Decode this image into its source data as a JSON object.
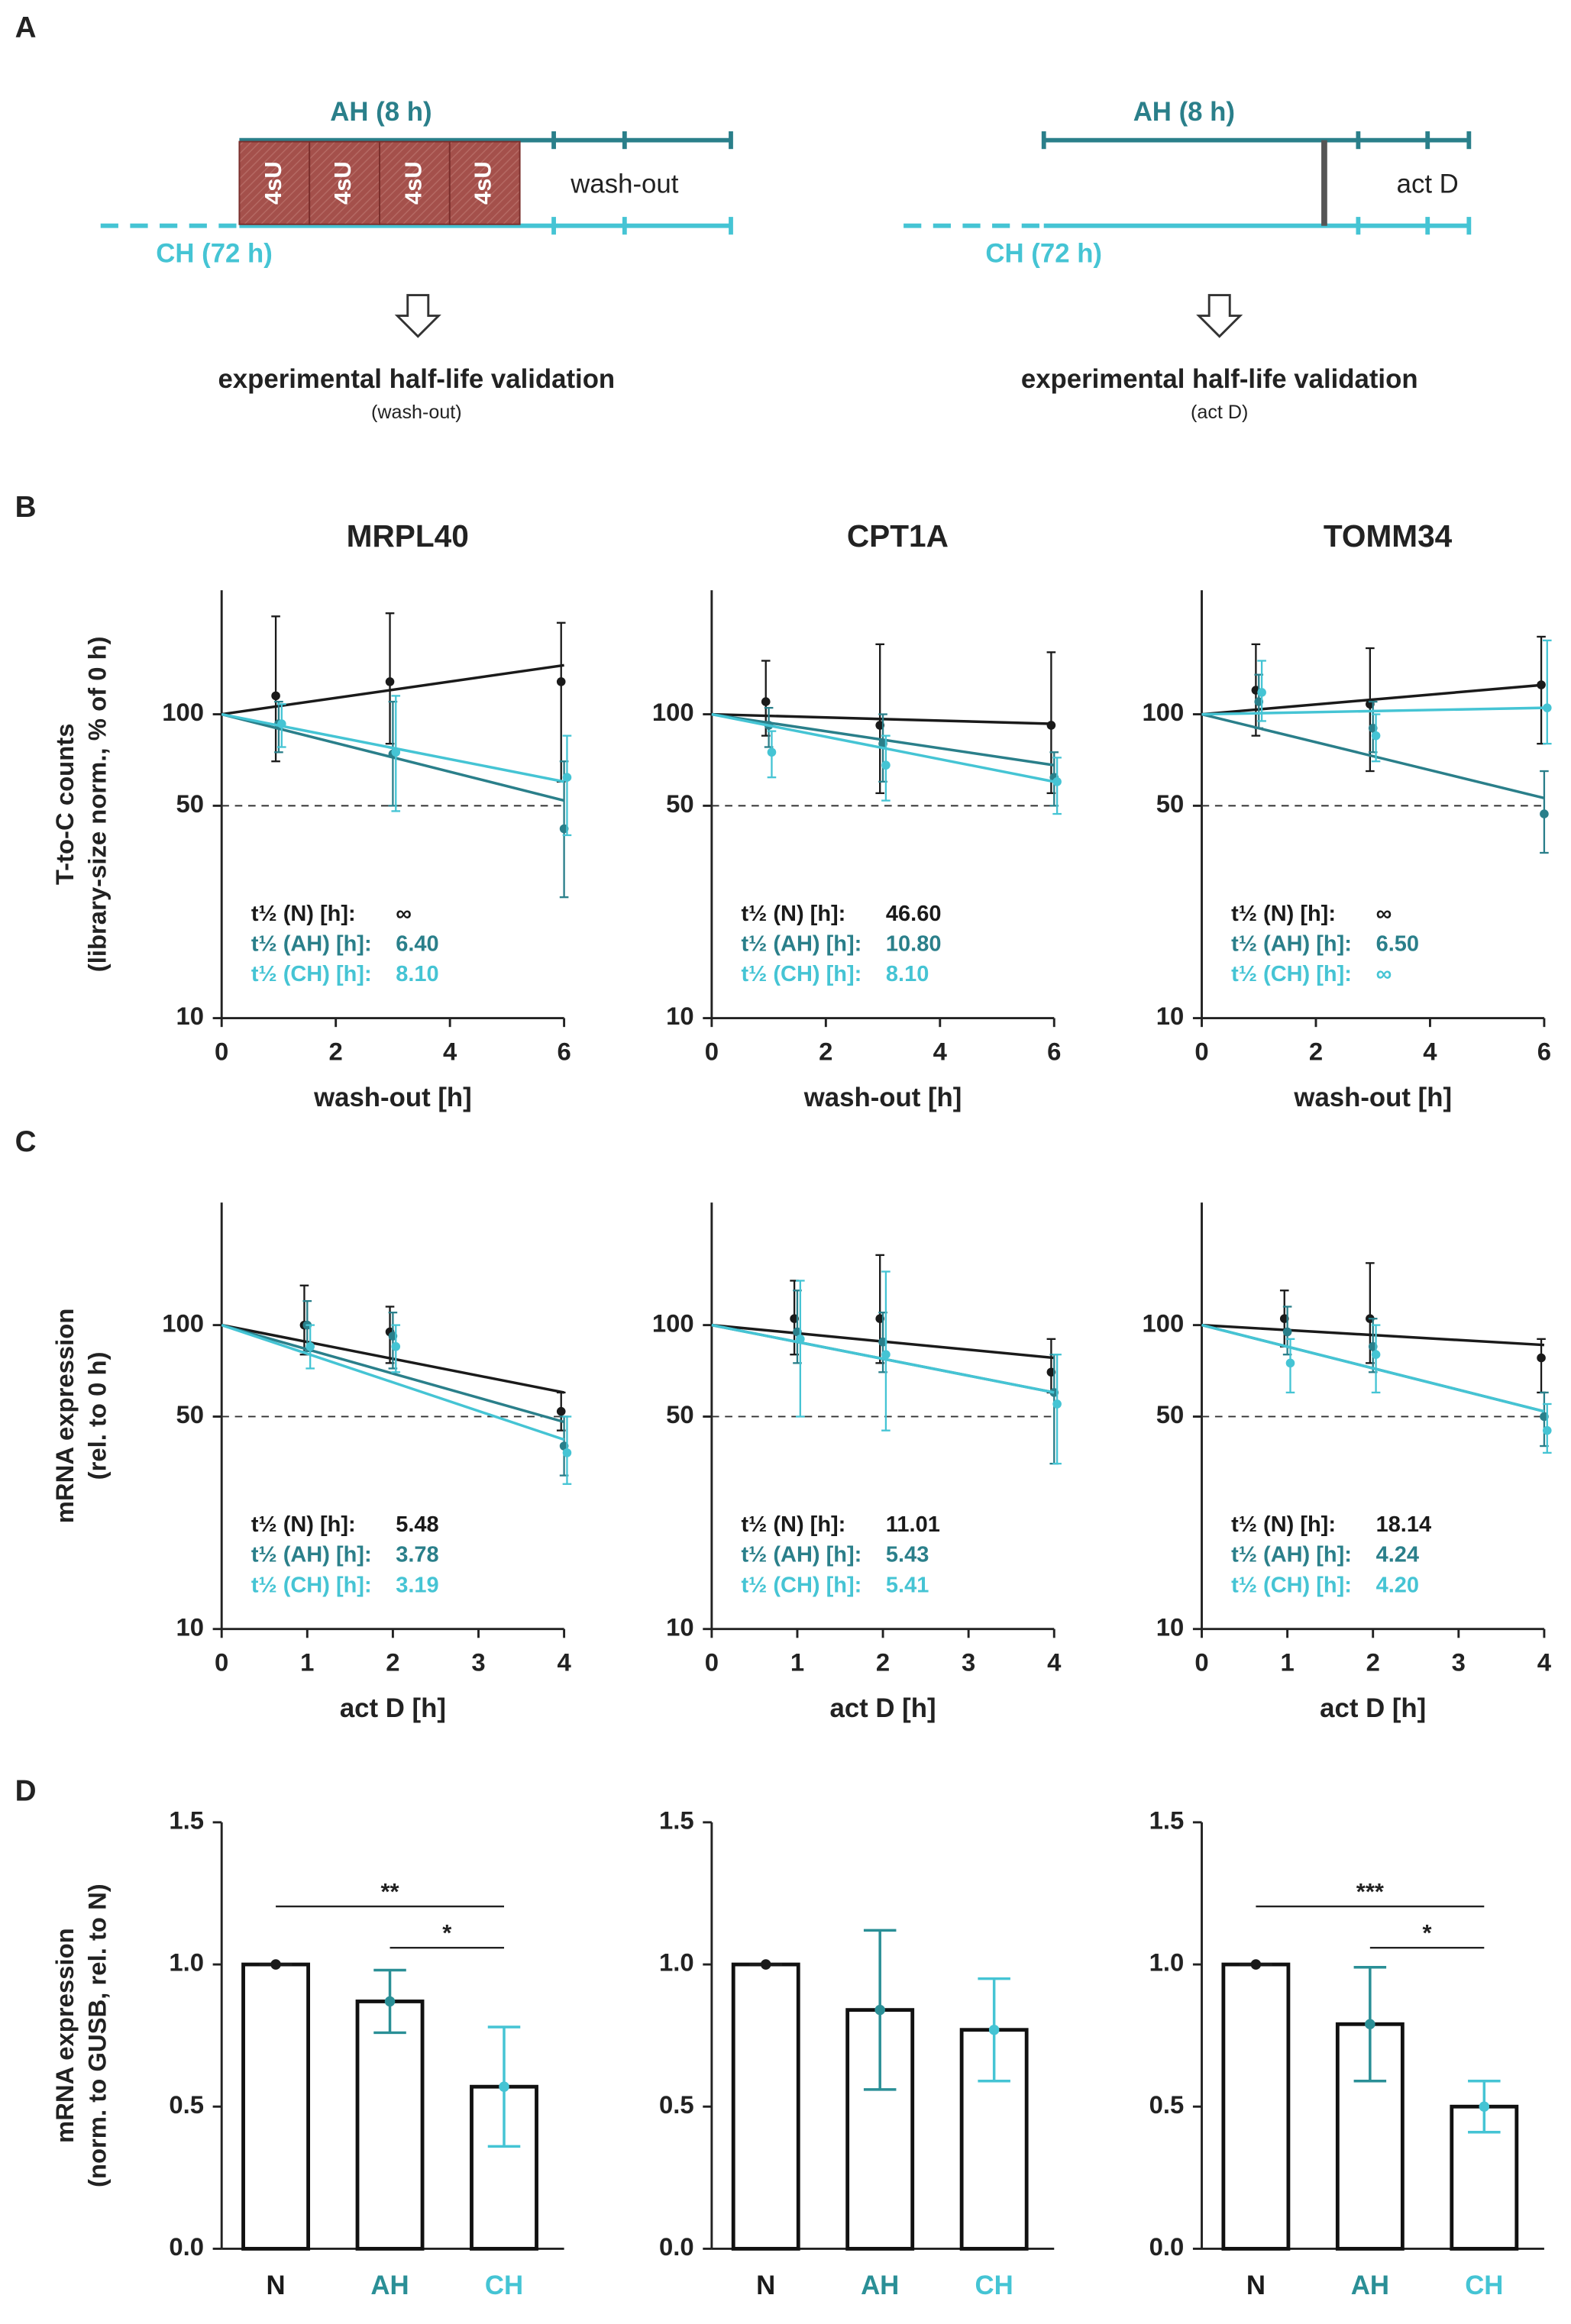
{
  "panel_labels": [
    "A",
    "B",
    "C",
    "D"
  ],
  "diagram": {
    "left": {
      "ah_label": "AH (8 h)",
      "ch_label": "CH (72 h)",
      "pulses": [
        "4sU",
        "4sU",
        "4sU",
        "4sU"
      ],
      "phase": "wash-out",
      "caption": "experimental half-life validation",
      "subcaption": "(wash-out)"
    },
    "right": {
      "ah_label": "AH (8 h)",
      "ch_label": "CH (72 h)",
      "phase": "act D",
      "caption": "experimental half-life validation",
      "subcaption": "(act D)"
    }
  },
  "chart_data": [
    {
      "type": "line",
      "log_y": true,
      "title": "MRPL40",
      "ylabel": [
        "T-to-C counts",
        "(library-size norm., % of 0 h)"
      ],
      "xlabel": "wash-out [h]",
      "xlim": [
        0,
        6
      ],
      "xticks": [
        0,
        2,
        4,
        6
      ],
      "ylim": [
        10,
        256
      ],
      "yticks": [
        10,
        50,
        100
      ],
      "reference_line": 50,
      "x": [
        1,
        3,
        6
      ],
      "series": [
        {
          "color": "#1a1a1a",
          "values": [
            115,
            128,
            128
          ],
          "err_lo": [
            70,
            80,
            60
          ],
          "err_hi": [
            210,
            215,
            200
          ],
          "fit": {
            "x": [
              0,
              6
            ],
            "values": [
              100,
              145
            ]
          },
          "half_life_label": "t½ (N) [h]:",
          "half_life": "∞"
        },
        {
          "color": "#2a7f8a",
          "values": [
            93,
            74,
            42
          ],
          "err_lo": [
            75,
            50,
            25
          ],
          "err_hi": [
            110,
            110,
            70
          ],
          "fit": {
            "x": [
              0,
              6
            ],
            "values": [
              100,
              52
            ]
          },
          "half_life_label": "t½ (AH) [h]:",
          "half_life": "6.40"
        },
        {
          "color": "#45c4d4",
          "values": [
            93,
            75,
            62
          ],
          "err_lo": [
            78,
            48,
            40
          ],
          "err_hi": [
            108,
            115,
            85
          ],
          "fit": {
            "x": [
              0,
              6
            ],
            "values": [
              100,
              60
            ]
          },
          "half_life_label": "t½ (CH) [h]:",
          "half_life": "8.10"
        }
      ]
    },
    {
      "type": "line",
      "log_y": true,
      "title": "CPT1A",
      "xlabel": "wash-out [h]",
      "xlim": [
        0,
        6
      ],
      "xticks": [
        0,
        2,
        4,
        6
      ],
      "ylim": [
        10,
        256
      ],
      "yticks": [
        10,
        50,
        100
      ],
      "reference_line": 50,
      "x": [
        1,
        3,
        6
      ],
      "series": [
        {
          "color": "#1a1a1a",
          "values": [
            110,
            92,
            92
          ],
          "err_lo": [
            85,
            55,
            55
          ],
          "err_hi": [
            150,
            170,
            160
          ],
          "fit": {
            "x": [
              0,
              6
            ],
            "values": [
              100,
              93
            ]
          },
          "half_life_label": "t½ (N) [h]:",
          "half_life": "46.60"
        },
        {
          "color": "#2a7f8a",
          "values": [
            92,
            80,
            62
          ],
          "err_lo": [
            78,
            60,
            50
          ],
          "err_hi": [
            105,
            100,
            75
          ],
          "fit": {
            "x": [
              0,
              6
            ],
            "values": [
              100,
              68
            ]
          },
          "half_life_label": "t½ (AH) [h]:",
          "half_life": "10.80"
        },
        {
          "color": "#45c4d4",
          "values": [
            75,
            68,
            60
          ],
          "err_lo": [
            62,
            52,
            47
          ],
          "err_hi": [
            88,
            85,
            72
          ],
          "fit": {
            "x": [
              0,
              6
            ],
            "values": [
              100,
              60
            ]
          },
          "half_life_label": "t½ (CH) [h]:",
          "half_life": "8.10"
        }
      ]
    },
    {
      "type": "line",
      "log_y": true,
      "title": "TOMM34",
      "xlabel": "wash-out [h]",
      "xlim": [
        0,
        6
      ],
      "xticks": [
        0,
        2,
        4,
        6
      ],
      "ylim": [
        10,
        256
      ],
      "yticks": [
        10,
        50,
        100
      ],
      "reference_line": 50,
      "x": [
        1,
        3,
        6
      ],
      "series": [
        {
          "color": "#1a1a1a",
          "values": [
            120,
            108,
            125
          ],
          "err_lo": [
            85,
            65,
            80
          ],
          "err_hi": [
            170,
            165,
            180
          ],
          "fit": {
            "x": [
              0,
              6
            ],
            "values": [
              100,
              125
            ]
          },
          "half_life_label": "t½ (N) [h]:",
          "half_life": "∞"
        },
        {
          "color": "#2a7f8a",
          "values": [
            110,
            90,
            47
          ],
          "err_lo": [
            90,
            75,
            35
          ],
          "err_hi": [
            135,
            110,
            65
          ],
          "fit": {
            "x": [
              0,
              6
            ],
            "values": [
              100,
              53
            ]
          },
          "half_life_label": "t½ (AH) [h]:",
          "half_life": "6.50"
        },
        {
          "color": "#45c4d4",
          "values": [
            118,
            85,
            105
          ],
          "err_lo": [
            95,
            70,
            80
          ],
          "err_hi": [
            150,
            100,
            175
          ],
          "fit": {
            "x": [
              0,
              6
            ],
            "values": [
              100,
              105
            ]
          },
          "half_life_label": "t½ (CH) [h]:",
          "half_life": "∞"
        }
      ]
    },
    {
      "type": "line",
      "log_y": true,
      "ylabel": [
        "mRNA expression",
        "(rel. to 0 h)"
      ],
      "xlabel": "act D [h]",
      "xlim": [
        0,
        4
      ],
      "xticks": [
        0,
        1,
        2,
        3,
        4
      ],
      "ylim": [
        10,
        253
      ],
      "yticks": [
        10,
        50,
        100
      ],
      "reference_line": 50,
      "x": [
        1,
        2,
        4
      ],
      "series": [
        {
          "color": "#1a1a1a",
          "values": [
            100,
            95,
            52
          ],
          "err_lo": [
            80,
            75,
            45
          ],
          "err_hi": [
            135,
            115,
            60
          ],
          "fit": {
            "x": [
              0,
              4
            ],
            "values": [
              100,
              60
            ]
          },
          "half_life_label": "t½ (N) [h]:",
          "half_life": "5.48"
        },
        {
          "color": "#2a7f8a",
          "values": [
            100,
            92,
            40
          ],
          "err_lo": [
            82,
            72,
            32
          ],
          "err_hi": [
            120,
            110,
            50
          ],
          "fit": {
            "x": [
              0,
              4
            ],
            "values": [
              100,
              48
            ]
          },
          "half_life_label": "t½ (AH) [h]:",
          "half_life": "3.78"
        },
        {
          "color": "#45c4d4",
          "values": [
            85,
            85,
            38
          ],
          "err_lo": [
            72,
            70,
            30
          ],
          "err_hi": [
            100,
            100,
            50
          ],
          "fit": {
            "x": [
              0,
              4
            ],
            "values": [
              100,
              42
            ]
          },
          "half_life_label": "t½ (CH) [h]:",
          "half_life": "3.19"
        }
      ]
    },
    {
      "type": "line",
      "log_y": true,
      "xlabel": "act D [h]",
      "xlim": [
        0,
        4
      ],
      "xticks": [
        0,
        1,
        2,
        3,
        4
      ],
      "ylim": [
        10,
        253
      ],
      "yticks": [
        10,
        50,
        100
      ],
      "reference_line": 50,
      "x": [
        1,
        2,
        4
      ],
      "series": [
        {
          "color": "#1a1a1a",
          "values": [
            105,
            105,
            70
          ],
          "err_lo": [
            80,
            75,
            60
          ],
          "err_hi": [
            140,
            170,
            90
          ],
          "fit": {
            "x": [
              0,
              4
            ],
            "values": [
              100,
              78
            ]
          },
          "half_life_label": "t½ (N) [h]:",
          "half_life": "11.01"
        },
        {
          "color": "#2a7f8a",
          "values": [
            95,
            88,
            60
          ],
          "err_lo": [
            75,
            70,
            35
          ],
          "err_hi": [
            130,
            110,
            80
          ],
          "fit": {
            "x": [
              0,
              4
            ],
            "values": [
              100,
              60
            ]
          },
          "half_life_label": "t½ (AH) [h]:",
          "half_life": "5.43"
        },
        {
          "color": "#45c4d4",
          "values": [
            90,
            80,
            55
          ],
          "err_lo": [
            50,
            45,
            35
          ],
          "err_hi": [
            140,
            150,
            80
          ],
          "fit": {
            "x": [
              0,
              4
            ],
            "values": [
              100,
              60
            ]
          },
          "half_life_label": "t½ (CH) [h]:",
          "half_life": "5.41"
        }
      ]
    },
    {
      "type": "line",
      "log_y": true,
      "xlabel": "act D [h]",
      "xlim": [
        0,
        4
      ],
      "xticks": [
        0,
        1,
        2,
        3,
        4
      ],
      "ylim": [
        10,
        253
      ],
      "yticks": [
        10,
        50,
        100
      ],
      "reference_line": 50,
      "x": [
        1,
        2,
        4
      ],
      "series": [
        {
          "color": "#1a1a1a",
          "values": [
            105,
            105,
            78
          ],
          "err_lo": [
            85,
            75,
            60
          ],
          "err_hi": [
            130,
            160,
            90
          ],
          "fit": {
            "x": [
              0,
              4
            ],
            "values": [
              100,
              86
            ]
          },
          "half_life_label": "t½ (N) [h]:",
          "half_life": "18.14"
        },
        {
          "color": "#2a7f8a",
          "values": [
            95,
            85,
            50
          ],
          "err_lo": [
            80,
            70,
            40
          ],
          "err_hi": [
            115,
            105,
            60
          ],
          "fit": {
            "x": [
              0,
              4
            ],
            "values": [
              100,
              52
            ]
          },
          "half_life_label": "t½ (AH) [h]:",
          "half_life": "4.24"
        },
        {
          "color": "#45c4d4",
          "values": [
            75,
            80,
            45
          ],
          "err_lo": [
            60,
            60,
            38
          ],
          "err_hi": [
            90,
            100,
            55
          ],
          "fit": {
            "x": [
              0,
              4
            ],
            "values": [
              100,
              52
            ]
          },
          "half_life_label": "t½ (CH) [h]:",
          "half_life": "4.20"
        }
      ]
    },
    {
      "type": "bar",
      "ylabel": [
        "mRNA expression",
        "(norm. to GUSB, rel. to N)"
      ],
      "categories": [
        "N",
        "AH",
        "CH"
      ],
      "colors": [
        "#1a1a1a",
        "#2a8f96",
        "#45c4d4"
      ],
      "values": [
        1.0,
        0.87,
        0.57
      ],
      "errors": [
        0,
        0.11,
        0.21
      ],
      "ylim": [
        0,
        1.5
      ],
      "yticks": [
        {
          "value": 0,
          "label": "0.0"
        },
        {
          "value": 0.5,
          "label": "0.5"
        },
        {
          "value": 1,
          "label": "1.0"
        },
        {
          "value": 1.5,
          "label": "1.5"
        }
      ],
      "brackets": [
        {
          "between": [
            "N",
            "CH"
          ],
          "label": "**"
        },
        {
          "between": [
            "AH",
            "CH"
          ],
          "label": "*"
        }
      ]
    },
    {
      "type": "bar",
      "categories": [
        "N",
        "AH",
        "CH"
      ],
      "colors": [
        "#1a1a1a",
        "#2a8f96",
        "#45c4d4"
      ],
      "values": [
        1.0,
        0.84,
        0.77
      ],
      "errors": [
        0,
        0.28,
        0.18
      ],
      "ylim": [
        0,
        1.5
      ],
      "yticks": [
        {
          "value": 0,
          "label": "0.0"
        },
        {
          "value": 0.5,
          "label": "0.5"
        },
        {
          "value": 1,
          "label": "1.0"
        },
        {
          "value": 1.5,
          "label": "1.5"
        }
      ]
    },
    {
      "type": "bar",
      "categories": [
        "N",
        "AH",
        "CH"
      ],
      "colors": [
        "#1a1a1a",
        "#2a8f96",
        "#45c4d4"
      ],
      "values": [
        1.0,
        0.79,
        0.5
      ],
      "errors": [
        0,
        0.2,
        0.09
      ],
      "ylim": [
        0,
        1.5
      ],
      "yticks": [
        {
          "value": 0,
          "label": "0.0"
        },
        {
          "value": 0.5,
          "label": "0.5"
        },
        {
          "value": 1,
          "label": "1.0"
        },
        {
          "value": 1.5,
          "label": "1.5"
        }
      ],
      "brackets": [
        {
          "between": [
            "N",
            "CH"
          ],
          "label": "***"
        },
        {
          "between": [
            "AH",
            "CH"
          ],
          "label": "*"
        }
      ]
    }
  ]
}
